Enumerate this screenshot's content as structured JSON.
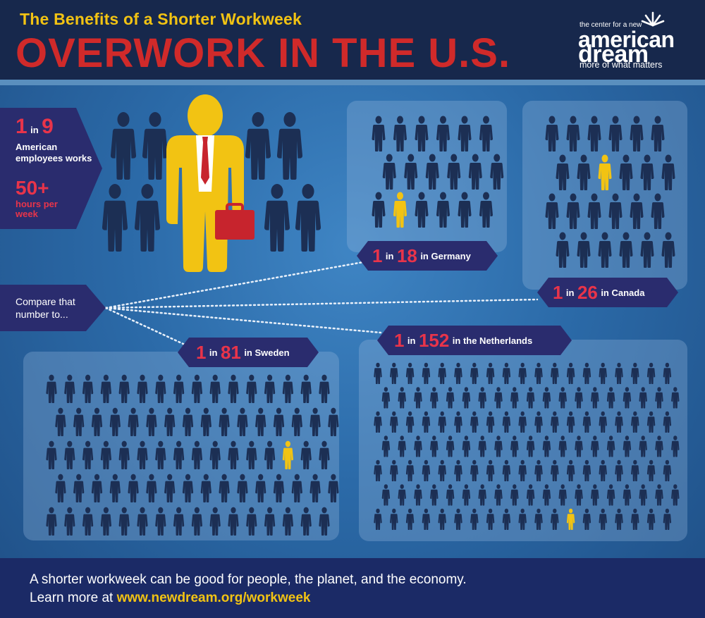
{
  "header": {
    "subtitle": "The Benefits of a Shorter Workweek",
    "title": "OVERWORK IN THE U.S."
  },
  "logo": {
    "top_line": "the center for a new",
    "american": "american",
    "dream": "dream",
    "tagline": "more of what matters"
  },
  "us_stat": {
    "one": "1",
    "in": "in",
    "nine": "9",
    "line": "American employees works",
    "fifty": "50+",
    "hours": "hours per week"
  },
  "compare": {
    "text": "Compare that number to..."
  },
  "countries": [
    {
      "one": "1",
      "in": "in",
      "num": "18",
      "country": "in Germany"
    },
    {
      "one": "1",
      "in": "in",
      "num": "26",
      "country": "in Canada"
    },
    {
      "one": "1",
      "in": "in",
      "num": "81",
      "country": "in Sweden"
    },
    {
      "one": "1",
      "in": "in",
      "num": "152",
      "country": "in the Netherlands"
    }
  ],
  "footer": {
    "line1": "A shorter workweek can be good for people, the planet, and the economy.",
    "line2_prefix": "Learn more at ",
    "link": "www.newdream.org/workweek"
  },
  "colors": {
    "header_bg": "#17284c",
    "subtitle_yellow": "#f2c313",
    "title_red": "#d02a2a",
    "badge_navy": "#2a2c6e",
    "figure_dark": "#1c2f54",
    "figure_highlight": "#f2c313",
    "accent_red": "#e8344a",
    "footer_bg": "#1b2a66"
  }
}
